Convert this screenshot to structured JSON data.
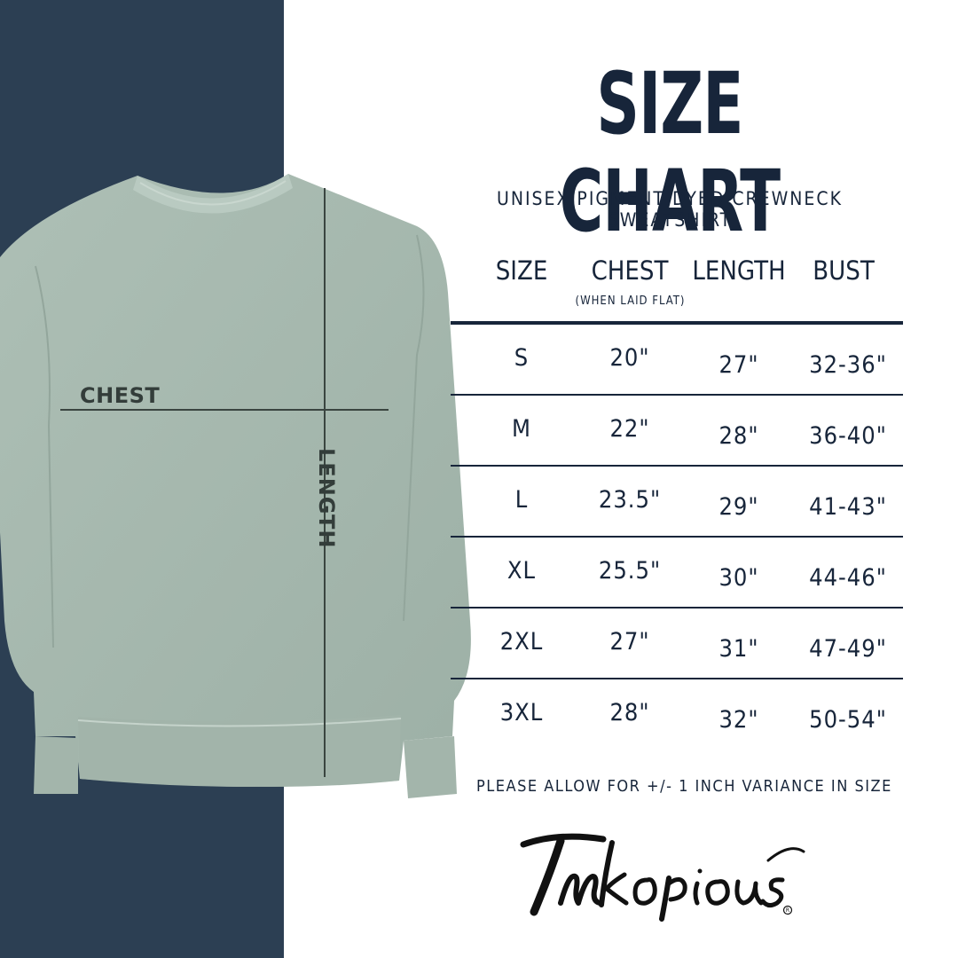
{
  "title": "SIZE CHART",
  "subtitle": "UNISEX PIGMENT DYED CREWNECK SWEATSHIRT",
  "diagram": {
    "chest_label": "CHEST",
    "length_label": "LENGTH"
  },
  "table": {
    "headers": {
      "size": "SIZE",
      "chest": "CHEST",
      "chest_note": "(WHEN LAID FLAT)",
      "length": "LENGTH",
      "bust": "BUST"
    },
    "rows": [
      {
        "size": "S",
        "chest": "20\"",
        "length": "27\"",
        "bust": "32-36\""
      },
      {
        "size": "M",
        "chest": "22\"",
        "length": "28\"",
        "bust": "36-40\""
      },
      {
        "size": "L",
        "chest": "23.5\"",
        "length": "29\"",
        "bust": "41-43\""
      },
      {
        "size": "XL",
        "chest": "25.5\"",
        "length": "30\"",
        "bust": "44-46\""
      },
      {
        "size": "2XL",
        "chest": "27\"",
        "length": "31\"",
        "bust": "47-49\""
      },
      {
        "size": "3XL",
        "chest": "28\"",
        "length": "32\"",
        "bust": "50-54\""
      }
    ]
  },
  "note": "PLEASE ALLOW FOR +/- 1 INCH VARIANCE IN SIZE",
  "brand": {
    "logo_text": "Inkopious"
  },
  "colors": {
    "navy": "#2c3f53",
    "text": "#17253a",
    "sweatshirt": "#a6b8ae",
    "line": "#3a4540"
  }
}
